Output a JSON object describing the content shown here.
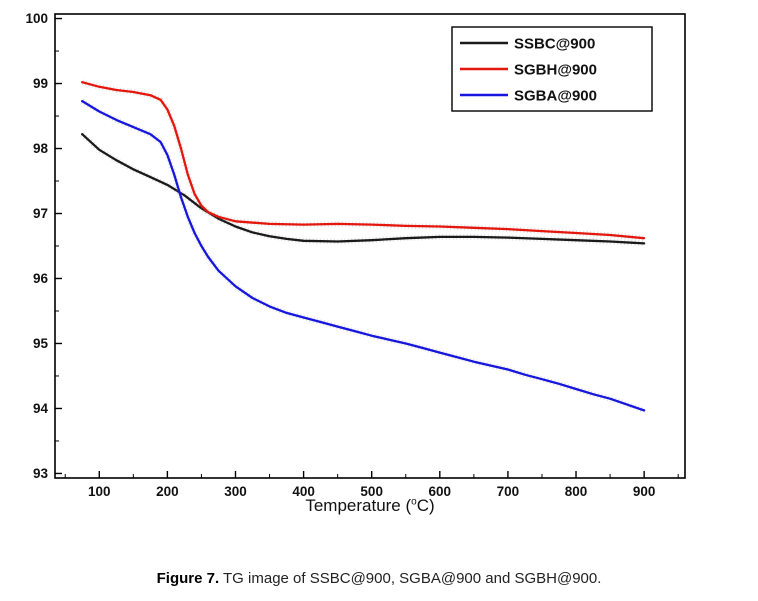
{
  "figure": {
    "caption_label": "Figure 7.",
    "caption_text": " TG image of SSBC@900, SGBA@900 and SGBH@900."
  },
  "chart_data": {
    "type": "line",
    "title": "",
    "xlabel": "Temperature (°C)",
    "xlabel_parts": [
      "Temperature (",
      "o",
      "C)"
    ],
    "ylabel": "",
    "xlim": [
      35,
      960
    ],
    "ylim": [
      92.93,
      100.07
    ],
    "x_ticks": [
      100,
      200,
      300,
      400,
      500,
      600,
      700,
      800,
      900
    ],
    "y_ticks": [
      93,
      94,
      95,
      96,
      97,
      98,
      99,
      100
    ],
    "grid": false,
    "legend_position": "top-right",
    "series": [
      {
        "name": "SSBC@900",
        "color": "#1a1a1a",
        "x": [
          75,
          100,
          125,
          150,
          175,
          200,
          225,
          250,
          275,
          300,
          325,
          350,
          375,
          400,
          450,
          500,
          550,
          600,
          650,
          700,
          750,
          800,
          850,
          900
        ],
        "y": [
          98.22,
          97.98,
          97.82,
          97.68,
          97.56,
          97.44,
          97.28,
          97.08,
          96.92,
          96.8,
          96.71,
          96.65,
          96.61,
          96.58,
          96.57,
          96.59,
          96.62,
          96.64,
          96.64,
          96.63,
          96.61,
          96.59,
          96.57,
          96.54
        ]
      },
      {
        "name": "SGBH@900",
        "color": "#e3170d",
        "x": [
          75,
          100,
          125,
          150,
          175,
          190,
          200,
          210,
          220,
          230,
          240,
          250,
          260,
          275,
          300,
          350,
          400,
          450,
          500,
          550,
          600,
          650,
          700,
          750,
          800,
          850,
          900
        ],
        "y": [
          99.02,
          98.95,
          98.9,
          98.87,
          98.82,
          98.75,
          98.6,
          98.35,
          98.0,
          97.6,
          97.3,
          97.12,
          97.02,
          96.95,
          96.88,
          96.84,
          96.83,
          96.84,
          96.83,
          96.81,
          96.8,
          96.78,
          96.76,
          96.73,
          96.7,
          96.67,
          96.62
        ]
      },
      {
        "name": "SGBA@900",
        "color": "#1616dd",
        "x": [
          75,
          100,
          125,
          150,
          175,
          190,
          200,
          210,
          220,
          230,
          240,
          250,
          260,
          275,
          300,
          325,
          350,
          375,
          400,
          425,
          450,
          475,
          500,
          525,
          550,
          575,
          600,
          625,
          650,
          675,
          700,
          725,
          750,
          775,
          800,
          825,
          850,
          875,
          900
        ],
        "y": [
          98.73,
          98.57,
          98.44,
          98.33,
          98.22,
          98.1,
          97.9,
          97.6,
          97.25,
          96.95,
          96.7,
          96.5,
          96.33,
          96.12,
          95.88,
          95.7,
          95.57,
          95.47,
          95.4,
          95.33,
          95.26,
          95.19,
          95.12,
          95.06,
          95.0,
          94.93,
          94.86,
          94.79,
          94.72,
          94.66,
          94.6,
          94.52,
          94.45,
          94.38,
          94.3,
          94.22,
          94.15,
          94.06,
          93.97
        ]
      }
    ]
  }
}
